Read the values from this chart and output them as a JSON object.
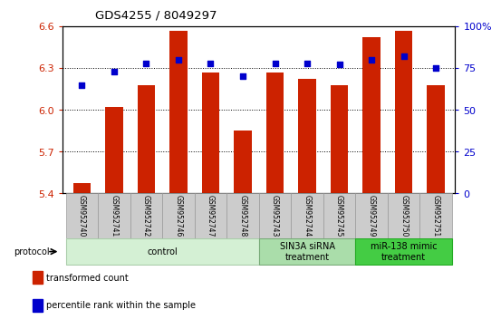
{
  "title": "GDS4255 / 8049297",
  "samples": [
    "GSM952740",
    "GSM952741",
    "GSM952742",
    "GSM952746",
    "GSM952747",
    "GSM952748",
    "GSM952743",
    "GSM952744",
    "GSM952745",
    "GSM952749",
    "GSM952750",
    "GSM952751"
  ],
  "transformed_count": [
    5.47,
    6.02,
    6.18,
    6.57,
    6.27,
    5.85,
    6.27,
    6.22,
    6.18,
    6.52,
    6.57,
    6.18
  ],
  "percentile_rank": [
    65,
    73,
    78,
    80,
    78,
    70,
    78,
    78,
    77,
    80,
    82,
    75
  ],
  "ylim_left": [
    5.4,
    6.6
  ],
  "ylim_right": [
    0,
    100
  ],
  "yticks_left": [
    5.4,
    5.7,
    6.0,
    6.3,
    6.6
  ],
  "yticks_right": [
    0,
    25,
    50,
    75,
    100
  ],
  "bar_color": "#cc2200",
  "dot_color": "#0000cc",
  "groups": [
    {
      "label": "control",
      "start": 0,
      "end": 6,
      "color": "#d4f0d4",
      "edge_color": "#aaccaa"
    },
    {
      "label": "SIN3A siRNA\ntreatment",
      "start": 6,
      "end": 9,
      "color": "#aaddaa",
      "edge_color": "#77aa77"
    },
    {
      "label": "miR-138 mimic\ntreatment",
      "start": 9,
      "end": 12,
      "color": "#44cc44",
      "edge_color": "#22aa22"
    }
  ],
  "protocol_label": "protocol",
  "legend_red_label": "transformed count",
  "legend_blue_label": "percentile rank within the sample",
  "bar_bottom": 5.4
}
